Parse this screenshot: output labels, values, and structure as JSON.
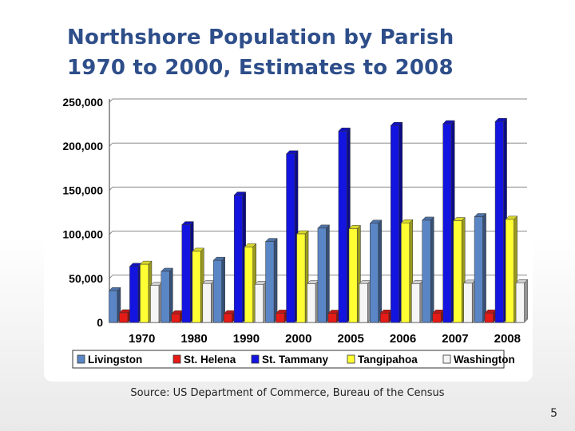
{
  "slide": {
    "title_line1": "Northshore Population by Parish",
    "title_line2": "1970 to 2000, Estimates to 2008",
    "source": "Source: US Department of Commerce, Bureau of the Census",
    "page_number": "5"
  },
  "chart_data": {
    "type": "bar",
    "style": "3d-clustered",
    "categories": [
      "1970",
      "1980",
      "1990",
      "2000",
      "2005",
      "2006",
      "2007",
      "2008"
    ],
    "ylim": [
      0,
      250000
    ],
    "yticks": [
      "0",
      "50,000",
      "100,000",
      "150,000",
      "200,000",
      "250,000"
    ],
    "grid": true,
    "legend_position": "bottom",
    "series": [
      {
        "name": "Livingston",
        "color": "#5b86c5",
        "values": [
          36000,
          58000,
          70500,
          91800,
          107000,
          112500,
          116000,
          120000
        ]
      },
      {
        "name": "St. Helena",
        "color": "#e41b17",
        "values": [
          10900,
          9800,
          9900,
          10500,
          10400,
          10600,
          10600,
          10700
        ]
      },
      {
        "name": "St. Tammany",
        "color": "#1414e0",
        "values": [
          63600,
          110900,
          144500,
          191300,
          217200,
          223500,
          225500,
          228000
        ]
      },
      {
        "name": "Tangipahoa",
        "color": "#ffff33",
        "values": [
          66000,
          80700,
          85700,
          100500,
          106500,
          113000,
          115500,
          117000
        ]
      },
      {
        "name": "Washington",
        "color": "#f5f5f5",
        "values": [
          41900,
          44200,
          43200,
          43900,
          44200,
          44000,
          44500,
          45000
        ]
      }
    ]
  }
}
